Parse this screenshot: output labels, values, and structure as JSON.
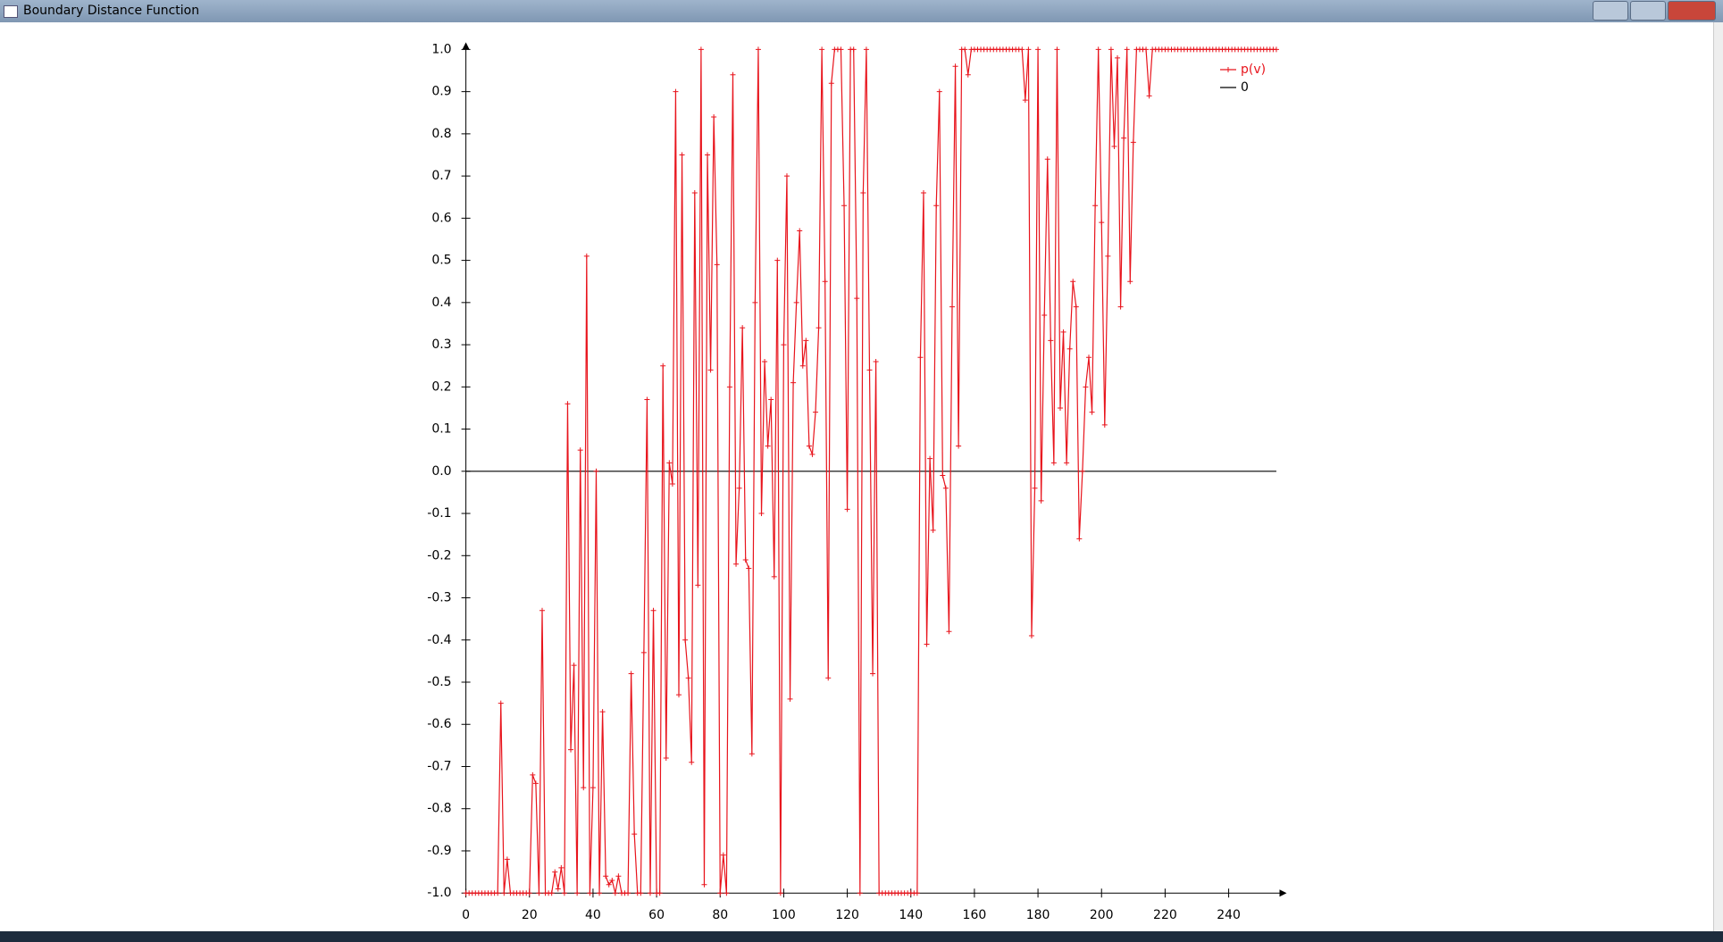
{
  "window": {
    "title": "Boundary Distance Function"
  },
  "chart_data": {
    "type": "line",
    "xlim": [
      0,
      256
    ],
    "ylim": [
      -1,
      1
    ],
    "xticks": [
      0,
      20,
      40,
      60,
      80,
      100,
      120,
      140,
      160,
      180,
      200,
      220,
      240
    ],
    "yticks": [
      {
        "value": -1,
        "label": "-1.0"
      },
      -0.9,
      -0.8,
      -0.7,
      -0.6,
      -0.5,
      -0.4,
      -0.3,
      -0.2,
      -0.1,
      {
        "value": 0,
        "label": "0.0"
      },
      0.1,
      0.2,
      0.3,
      0.4,
      0.5,
      0.6,
      0.7,
      0.8,
      0.9,
      {
        "value": 1,
        "label": "1.0"
      }
    ],
    "legend": "upper right",
    "series": [
      {
        "name": "p(v)",
        "color": "#e8141c",
        "markers": true,
        "x": [
          0,
          1,
          2,
          3,
          4,
          5,
          6,
          7,
          8,
          9,
          10,
          11,
          12,
          13,
          14,
          15,
          16,
          17,
          18,
          19,
          20,
          21,
          22,
          23,
          24,
          25,
          26,
          27,
          28,
          29,
          30,
          31,
          32,
          33,
          34,
          35,
          36,
          37,
          38,
          39,
          40,
          41,
          42,
          43,
          44,
          45,
          46,
          47,
          48,
          49,
          50,
          51,
          52,
          53,
          54,
          55,
          56,
          57,
          58,
          59,
          60,
          61,
          62,
          63,
          64,
          65,
          66,
          67,
          68,
          69,
          70,
          71,
          72,
          73,
          74,
          75,
          76,
          77,
          78,
          79,
          80,
          81,
          82,
          83,
          84,
          85,
          86,
          87,
          88,
          89,
          90,
          91,
          92,
          93,
          94,
          95,
          96,
          97,
          98,
          99,
          100,
          101,
          102,
          103,
          104,
          105,
          106,
          107,
          108,
          109,
          110,
          111,
          112,
          113,
          114,
          115,
          116,
          117,
          118,
          119,
          120,
          121,
          122,
          123,
          124,
          125,
          126,
          127,
          128,
          129,
          130,
          131,
          132,
          133,
          134,
          135,
          136,
          137,
          138,
          139,
          140,
          141,
          142,
          143,
          144,
          145,
          146,
          147,
          148,
          149,
          150,
          151,
          152,
          153,
          154,
          155,
          156,
          157,
          158,
          159,
          160,
          161,
          162,
          163,
          164,
          165,
          166,
          167,
          168,
          169,
          170,
          171,
          172,
          173,
          174,
          175,
          176,
          177,
          178,
          179,
          180,
          181,
          182,
          183,
          184,
          185,
          186,
          187,
          188,
          189,
          190,
          191,
          192,
          193,
          194,
          195,
          196,
          197,
          198,
          199,
          200,
          201,
          202,
          203,
          204,
          205,
          206,
          207,
          208,
          209,
          210,
          211,
          212,
          213,
          214,
          215,
          216,
          217,
          218,
          219,
          220,
          221,
          222,
          223,
          224,
          225,
          226,
          227,
          228,
          229,
          230,
          231,
          232,
          233,
          234,
          235,
          236,
          237,
          238,
          239,
          240,
          241,
          242,
          243,
          244,
          245,
          246,
          247,
          248,
          249,
          250,
          251,
          252,
          253,
          254,
          255
        ],
        "values": [
          -1,
          -1,
          -1,
          -1,
          -1,
          -1,
          -1,
          -1,
          -1,
          -1,
          -1,
          -0.55,
          -1,
          -0.92,
          -1,
          -1,
          -1,
          -1,
          -1,
          -1,
          -1,
          -0.72,
          -0.74,
          -1,
          -0.33,
          -1,
          -1,
          -1,
          -0.95,
          -0.99,
          -0.94,
          -1,
          0.16,
          -0.66,
          -0.46,
          -1,
          0.05,
          -0.75,
          0.51,
          -1,
          -0.75,
          0,
          -1,
          -0.57,
          -0.96,
          -0.98,
          -0.97,
          -1,
          -0.96,
          -1,
          -1,
          -1,
          -0.48,
          -0.86,
          -1,
          -1,
          -0.43,
          0.17,
          -1,
          -0.33,
          -1,
          -1,
          0.25,
          -0.68,
          0.02,
          -0.03,
          0.9,
          -0.53,
          0.75,
          -0.4,
          -0.49,
          -0.69,
          0.66,
          -0.27,
          1,
          -0.98,
          0.75,
          0.24,
          0.84,
          0.49,
          -1,
          -0.91,
          -1,
          0.2,
          0.94,
          -0.22,
          -0.04,
          0.34,
          -0.21,
          -0.23,
          -0.67,
          0.4,
          1,
          -0.1,
          0.26,
          0.06,
          0.17,
          -0.25,
          0.5,
          -1,
          0.3,
          0.7,
          -0.54,
          0.21,
          0.4,
          0.57,
          0.25,
          0.31,
          0.06,
          0.04,
          0.14,
          0.34,
          1,
          0.45,
          -0.49,
          0.92,
          1,
          1,
          1,
          0.63,
          -0.09,
          1,
          1,
          0.41,
          -1,
          0.66,
          1,
          0.24,
          -0.48,
          0.26,
          -1,
          -1,
          -1,
          -1,
          -1,
          -1,
          -1,
          -1,
          -1,
          -1,
          -1,
          -1,
          -1,
          0.27,
          0.66,
          -0.41,
          0.03,
          -0.14,
          0.63,
          0.9,
          -0.01,
          -0.04,
          -0.38,
          0.39,
          0.96,
          0.06,
          1,
          1,
          0.94,
          1,
          1,
          1,
          1,
          1,
          1,
          1,
          1,
          1,
          1,
          1,
          1,
          1,
          1,
          1,
          1,
          1,
          0.88,
          1,
          -0.39,
          -0.04,
          1,
          -0.07,
          0.37,
          0.74,
          0.31,
          0.02,
          1,
          0.15,
          0.33,
          0.02,
          0.29,
          0.45,
          0.39,
          -0.16,
          0,
          0.2,
          0.27,
          0.14,
          0.63,
          1,
          0.59,
          0.11,
          0.51,
          1,
          0.77,
          0.98,
          0.39,
          0.79,
          1,
          0.45,
          0.78,
          1,
          1,
          1,
          1,
          0.89,
          1,
          1,
          1,
          1,
          1,
          1,
          1,
          1,
          1,
          1,
          1,
          1,
          1,
          1,
          1,
          1,
          1,
          1,
          1,
          1,
          1,
          1,
          1,
          1,
          1,
          1,
          1,
          1,
          1,
          1,
          1,
          1,
          1,
          1,
          1,
          1,
          1,
          1,
          1,
          1
        ]
      },
      {
        "name": "0",
        "color": "#000000",
        "markers": false,
        "x": [
          0,
          255
        ],
        "values": [
          0,
          0
        ]
      }
    ]
  }
}
